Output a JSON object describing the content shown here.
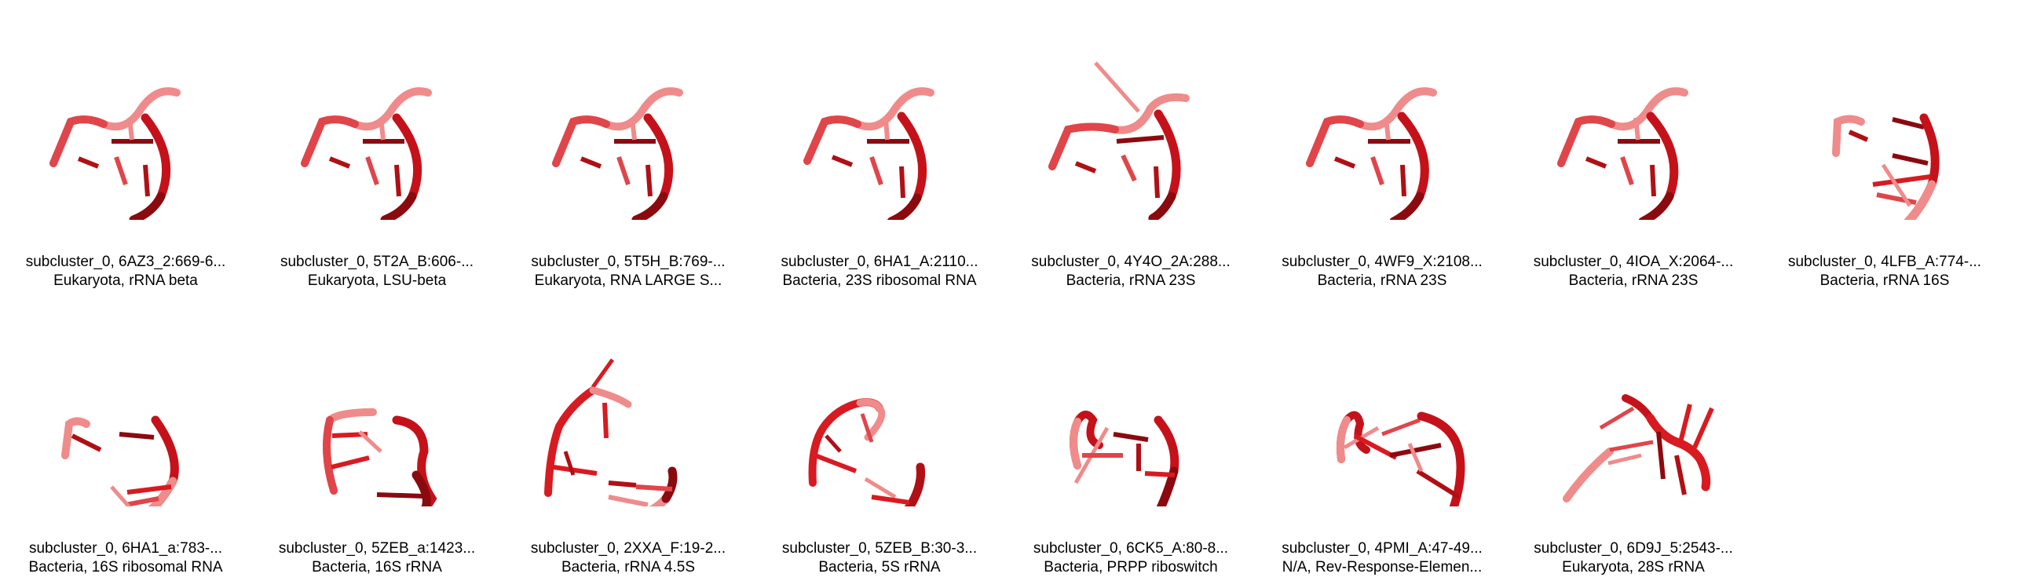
{
  "colors": {
    "background": "#ffffff",
    "strand_dark": "#8b0a0f",
    "strand_main": "#d81b21",
    "strand_light": "#f08b8b",
    "caption_text": "#000000"
  },
  "items": [
    {
      "title": "subcluster_0, 6AZ3_2:669-6...",
      "subtitle": "Eukaryota, rRNA beta",
      "icon": "rna-3d-structure-icon"
    },
    {
      "title": "subcluster_0, 5T2A_B:606-...",
      "subtitle": "Eukaryota, LSU-beta",
      "icon": "rna-3d-structure-icon"
    },
    {
      "title": "subcluster_0, 5T5H_B:769-...",
      "subtitle": "Eukaryota, RNA LARGE S...",
      "icon": "rna-3d-structure-icon"
    },
    {
      "title": "subcluster_0, 6HA1_A:2110...",
      "subtitle": "Bacteria, 23S ribosomal RNA",
      "icon": "rna-3d-structure-icon"
    },
    {
      "title": "subcluster_0, 4Y4O_2A:288...",
      "subtitle": "Bacteria, rRNA 23S",
      "icon": "rna-3d-structure-icon"
    },
    {
      "title": "subcluster_0, 4WF9_X:2108...",
      "subtitle": "Bacteria, rRNA 23S",
      "icon": "rna-3d-structure-icon"
    },
    {
      "title": "subcluster_0, 4IOA_X:2064-...",
      "subtitle": "Bacteria, rRNA 23S",
      "icon": "rna-3d-structure-icon"
    },
    {
      "title": "subcluster_0, 4LFB_A:774-...",
      "subtitle": "Bacteria, rRNA 16S",
      "icon": "rna-3d-structure-icon"
    },
    {
      "title": "subcluster_0, 6HA1_a:783-...",
      "subtitle": "Bacteria, 16S ribosomal RNA",
      "icon": "rna-3d-structure-icon"
    },
    {
      "title": "subcluster_0, 5ZEB_a:1423...",
      "subtitle": "Bacteria, 16S rRNA",
      "icon": "rna-3d-structure-icon"
    },
    {
      "title": "subcluster_0, 2XXA_F:19-2...",
      "subtitle": "Bacteria, rRNA 4.5S",
      "icon": "rna-3d-structure-icon"
    },
    {
      "title": "subcluster_0, 5ZEB_B:30-3...",
      "subtitle": "Bacteria, 5S rRNA",
      "icon": "rna-3d-structure-icon"
    },
    {
      "title": "subcluster_0, 6CK5_A:80-8...",
      "subtitle": "Bacteria, PRPP riboswitch",
      "icon": "rna-3d-structure-icon"
    },
    {
      "title": "subcluster_0, 4PMI_A:47-49...",
      "subtitle": "N/A, Rev-Response-Elemen...",
      "icon": "rna-3d-structure-icon"
    },
    {
      "title": "subcluster_0, 6D9J_5:2543-...",
      "subtitle": "Eukaryota, 28S rRNA",
      "icon": "rna-3d-structure-icon"
    }
  ]
}
